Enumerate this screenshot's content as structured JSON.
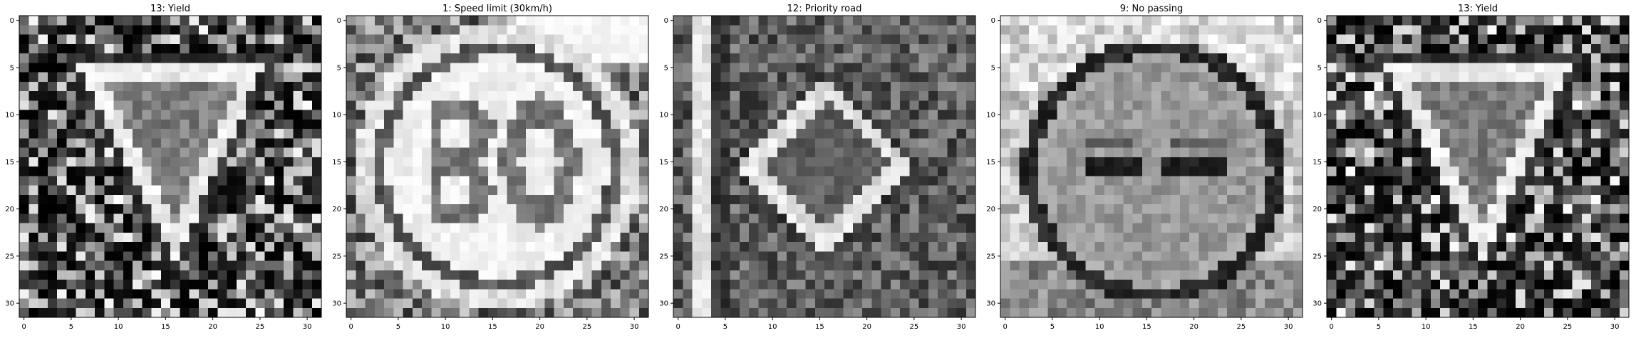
{
  "figure": {
    "panels": [
      {
        "title": "13: Yield",
        "sign": "yield",
        "x_ticks": [
          "0",
          "5",
          "10",
          "15",
          "20",
          "25",
          "30"
        ],
        "y_ticks": [
          "0",
          "5",
          "10",
          "15",
          "20",
          "25",
          "30"
        ]
      },
      {
        "title": "1: Speed limit (30km/h)",
        "sign": "speed-limit-30",
        "x_ticks": [
          "0",
          "5",
          "10",
          "15",
          "20",
          "25",
          "30"
        ],
        "y_ticks": [
          "0",
          "5",
          "10",
          "15",
          "20",
          "25",
          "30"
        ]
      },
      {
        "title": "12: Priority road",
        "sign": "priority-road",
        "x_ticks": [
          "0",
          "5",
          "10",
          "15",
          "20",
          "25",
          "30"
        ],
        "y_ticks": [
          "0",
          "5",
          "10",
          "15",
          "20",
          "25",
          "30"
        ]
      },
      {
        "title": "9: No passing",
        "sign": "no-passing",
        "x_ticks": [
          "0",
          "5",
          "10",
          "15",
          "20",
          "25",
          "30"
        ],
        "y_ticks": [
          "0",
          "5",
          "10",
          "15",
          "20",
          "25",
          "30"
        ]
      },
      {
        "title": "13: Yield",
        "sign": "yield",
        "x_ticks": [
          "0",
          "5",
          "10",
          "15",
          "20",
          "25",
          "30"
        ],
        "y_ticks": [
          "0",
          "5",
          "10",
          "15",
          "20",
          "25",
          "30"
        ]
      }
    ]
  }
}
